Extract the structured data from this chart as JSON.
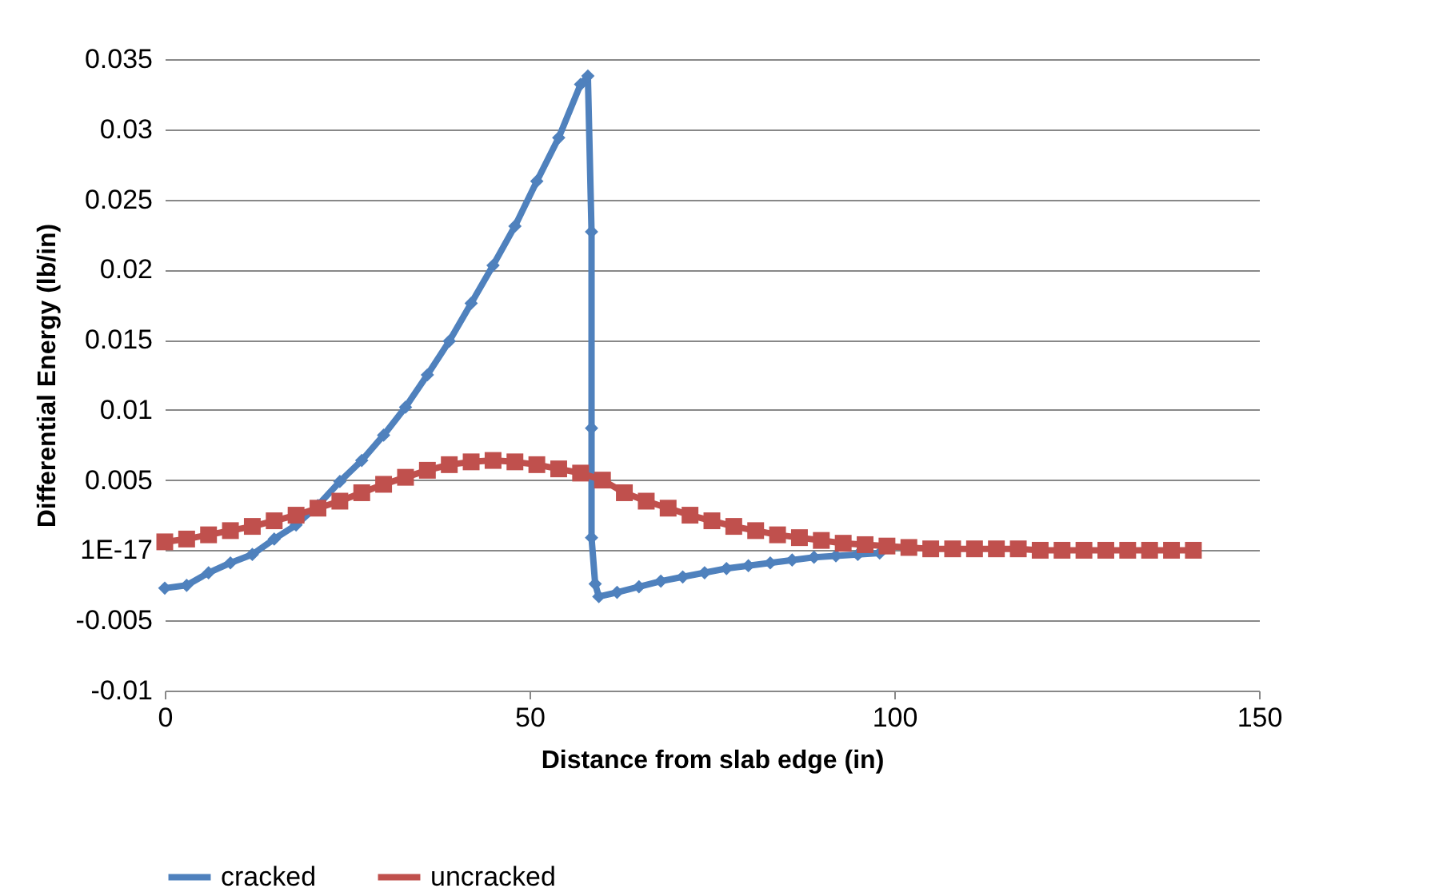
{
  "chart_data": {
    "type": "line",
    "xlabel": "Distance from slab edge (in)",
    "ylabel": "Differential Energy (lb/in)",
    "xlim": [
      0,
      150
    ],
    "xticks": [
      0,
      50,
      100,
      150
    ],
    "ylim": [
      -0.01,
      0.035
    ],
    "yticks": [
      -0.01,
      -0.005,
      {
        "value": 0,
        "label": "1E-17"
      },
      0.005,
      0.01,
      0.015,
      0.02,
      0.025,
      0.03,
      0.035
    ],
    "grid": "y",
    "legend": "bottom",
    "line_style": "solid",
    "series": [
      {
        "name": "cracked",
        "color": "#4f81bd",
        "marker": "diamond",
        "x": [
          0,
          3,
          6,
          9,
          12,
          15,
          18,
          21,
          24,
          27,
          30,
          33,
          36,
          39,
          42,
          45,
          48,
          51,
          54,
          57,
          58,
          58.5,
          58.5,
          58.5,
          59,
          59.5,
          62,
          65,
          68,
          71,
          74,
          77,
          80,
          83,
          86,
          89,
          92,
          95,
          98
        ],
        "values": [
          -0.0027,
          -0.0025,
          -0.0016,
          -0.0009,
          -0.0003,
          0.0008,
          0.0018,
          0.0032,
          0.0049,
          0.0064,
          0.0082,
          0.0102,
          0.0125,
          0.0149,
          0.0176,
          0.0203,
          0.0231,
          0.0263,
          0.0294,
          0.0332,
          0.0338,
          0.0227,
          0.0087,
          0.0009,
          -0.0024,
          -0.0033,
          -0.003,
          -0.0026,
          -0.0022,
          -0.0019,
          -0.0016,
          -0.0013,
          -0.0011,
          -0.0009,
          -0.0007,
          -0.0005,
          -0.0004,
          -0.0003,
          -0.0002
        ]
      },
      {
        "name": "uncracked",
        "color": "#c0504d",
        "marker": "square",
        "x": [
          0,
          3,
          6,
          9,
          12,
          15,
          18,
          21,
          24,
          27,
          30,
          33,
          36,
          39,
          42,
          45,
          48,
          51,
          54,
          57,
          60,
          63,
          66,
          69,
          72,
          75,
          78,
          81,
          84,
          87,
          90,
          93,
          96,
          99,
          102,
          105,
          108,
          111,
          114,
          117,
          120,
          123,
          126,
          129,
          132,
          135,
          138,
          141
        ],
        "values": [
          0.0006,
          0.0008,
          0.0011,
          0.0014,
          0.0017,
          0.0021,
          0.0025,
          0.003,
          0.0035,
          0.0041,
          0.0047,
          0.0052,
          0.0057,
          0.0061,
          0.0063,
          0.0064,
          0.0063,
          0.0061,
          0.0058,
          0.0055,
          0.005,
          0.0041,
          0.0035,
          0.003,
          0.0025,
          0.0021,
          0.0017,
          0.0014,
          0.0011,
          0.0009,
          0.0007,
          0.0005,
          0.0004,
          0.0003,
          0.0002,
          0.0001,
          0.0001,
          0.0001,
          0.0001,
          0.0001,
          0,
          0,
          0,
          0,
          0,
          0,
          0,
          0
        ]
      }
    ]
  }
}
